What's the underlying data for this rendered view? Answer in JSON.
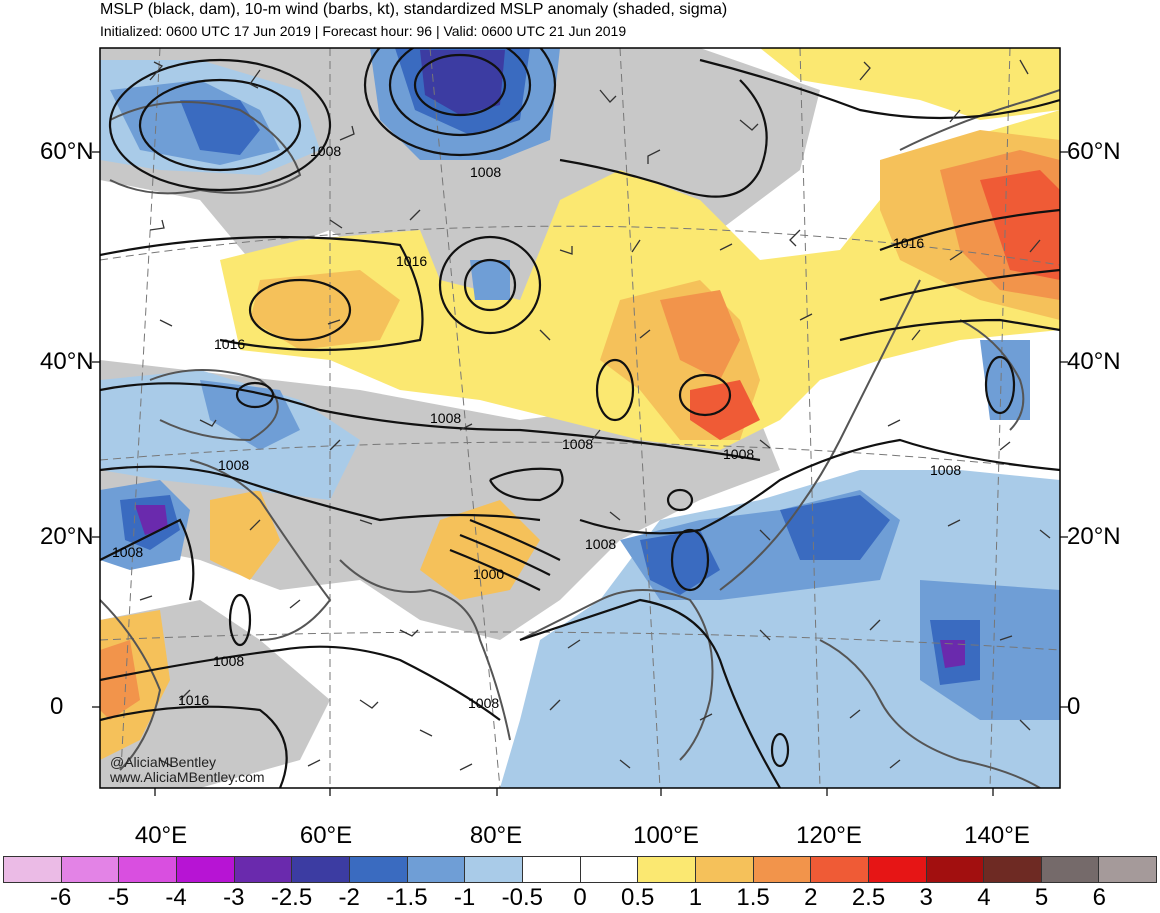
{
  "header": {
    "title": "MSLP (black, dam), 10-m wind (barbs, kt), standardized MSLP anomaly (shaded, sigma)",
    "subtitle": "Initialized: 0600 UTC 17 Jun 2019 | Forecast hour: 96 | Valid: 0600 UTC 21 Jun 2019"
  },
  "map": {
    "lat_labels": [
      "60°N",
      "40°N",
      "20°N",
      "0"
    ],
    "lon_labels": [
      "40°E",
      "60°E",
      "80°E",
      "100°E",
      "120°E",
      "140°E"
    ],
    "isobar_labels": [
      {
        "text": "1008",
        "where": "scandinavia"
      },
      {
        "text": "1008",
        "where": "west-siberia"
      },
      {
        "text": "1016",
        "where": "caspian-north"
      },
      {
        "text": "1016",
        "where": "black-sea"
      },
      {
        "text": "1016",
        "where": "east-siberia"
      },
      {
        "text": "1008",
        "where": "central-asia"
      },
      {
        "text": "1008",
        "where": "tibet"
      },
      {
        "text": "1008",
        "where": "china-east"
      },
      {
        "text": "1008",
        "where": "middle-east"
      },
      {
        "text": "1008",
        "where": "arabia"
      },
      {
        "text": "1000",
        "where": "pakistan"
      },
      {
        "text": "1008",
        "where": "bay-of-bengal"
      },
      {
        "text": "1008",
        "where": "pacific"
      },
      {
        "text": "1008",
        "where": "arabian-sea"
      },
      {
        "text": "1016",
        "where": "somalia"
      },
      {
        "text": "1008",
        "where": "indian-ocean"
      }
    ],
    "credit_handle": "@AliciaMBentley",
    "credit_url": "www.AliciaMBentley.com"
  },
  "colorbar": {
    "ticks": [
      "-6",
      "-5",
      "-4",
      "-3",
      "-2.5",
      "-2",
      "-1.5",
      "-1",
      "-0.5",
      "0",
      "0.5",
      "1",
      "1.5",
      "2",
      "2.5",
      "3",
      "4",
      "5",
      "6"
    ],
    "colors": [
      "#ebbbe6",
      "#e383e6",
      "#d94fe0",
      "#b714d4",
      "#6a2aad",
      "#3c3ca2",
      "#3a6bc0",
      "#6f9ed6",
      "#a9cbe8",
      "#ffffff",
      "#ffffff",
      "#fbe871",
      "#f5c15a",
      "#f2944b",
      "#ef5b36",
      "#e61515",
      "#a20f0f",
      "#6e2a23",
      "#756a6a",
      "#a59a9a"
    ],
    "zero_color": "#ffffff"
  },
  "colors": {
    "land_neutral": "#c8c8c8",
    "pos1": "#fbe871",
    "pos2": "#f5c15a",
    "pos3": "#f2944b",
    "pos4": "#ef5b36",
    "neg1": "#a9cbe8",
    "neg2": "#6f9ed6",
    "neg3": "#3a6bc0",
    "neg4": "#3c3ca2",
    "neg5": "#6a2aad"
  }
}
